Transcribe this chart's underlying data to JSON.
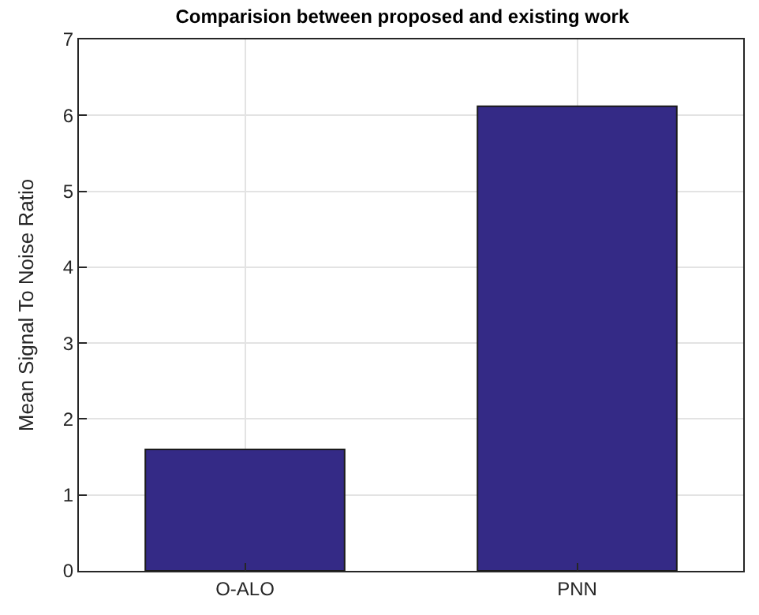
{
  "chart_data": {
    "type": "bar",
    "title": "Comparision between proposed and existing work",
    "ylabel": "Mean Signal To Noise Ratio",
    "categories": [
      "O-ALO",
      "PNN"
    ],
    "values": [
      1.6,
      6.12
    ],
    "color": "#342a86",
    "ylim": [
      0,
      7
    ],
    "yticks": [
      0,
      1,
      2,
      3,
      4,
      5,
      6,
      7
    ],
    "grid": true,
    "legend": false
  }
}
